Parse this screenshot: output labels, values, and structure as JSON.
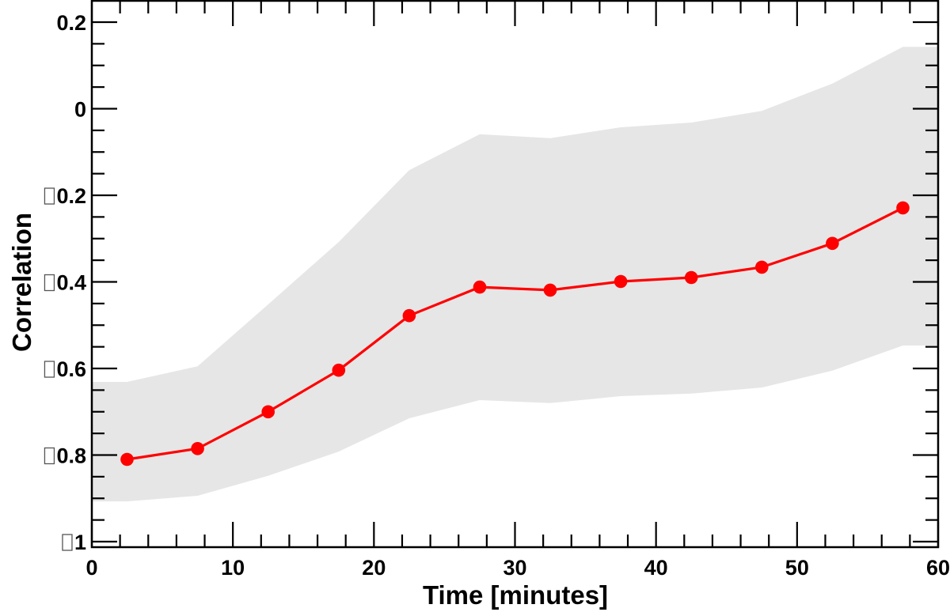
{
  "chart_data": {
    "type": "line",
    "title": "",
    "xlabel": "Time [minutes]",
    "ylabel": "Correlation",
    "xlim": [
      0,
      60
    ],
    "ylim": [
      -1.01,
      0.25
    ],
    "grid": false,
    "legend": null,
    "x_ticks": [
      0,
      10,
      20,
      30,
      40,
      50,
      60
    ],
    "x_tick_labels": [
      "0",
      "10",
      "20",
      "30",
      "40",
      "50",
      "60"
    ],
    "x_minor_step": 2,
    "y_ticks": [
      0.2,
      0,
      -0.2,
      -0.4,
      -0.6,
      -0.8,
      -1
    ],
    "y_tick_labels": [
      "0.2",
      "0",
      "□0.2",
      "□0.4",
      "□0.6",
      "□0.8",
      "□1"
    ],
    "y_minor_step": 0.05,
    "series": [
      {
        "name": "Correlation",
        "style": "line+markers",
        "color": "#ff0000",
        "x": [
          2.5,
          7.5,
          12.5,
          17.5,
          22.5,
          27.5,
          32.5,
          37.5,
          42.5,
          47.5,
          52.5,
          57.5
        ],
        "values": [
          -0.81,
          -0.785,
          -0.7,
          -0.604,
          -0.478,
          -0.412,
          -0.419,
          -0.399,
          -0.39,
          -0.366,
          -0.311,
          -0.229
        ]
      }
    ],
    "band": {
      "name": "Uncertainty band",
      "color": "#e6e6e6",
      "x": [
        0,
        2.5,
        7.5,
        12.5,
        17.5,
        22.5,
        27.5,
        32.5,
        37.5,
        42.5,
        47.5,
        52.5,
        57.5,
        60
      ],
      "upper": [
        -0.631,
        -0.631,
        -0.595,
        -0.452,
        -0.308,
        -0.142,
        -0.059,
        -0.068,
        -0.043,
        -0.032,
        -0.005,
        0.058,
        0.143,
        0.143
      ],
      "lower": [
        -0.907,
        -0.907,
        -0.894,
        -0.848,
        -0.792,
        -0.715,
        -0.673,
        -0.68,
        -0.664,
        -0.658,
        -0.644,
        -0.605,
        -0.547,
        -0.547
      ]
    }
  }
}
